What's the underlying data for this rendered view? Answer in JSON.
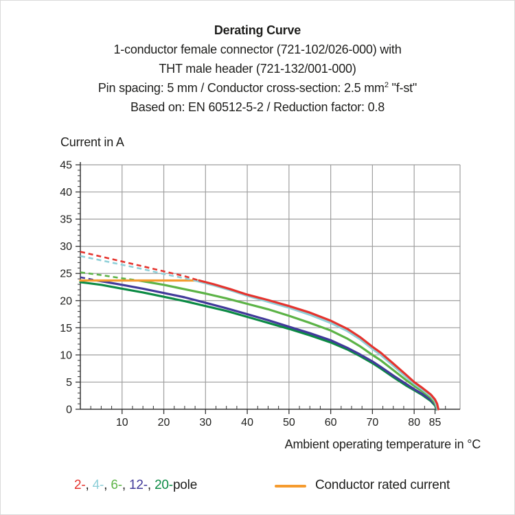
{
  "header": {
    "title": "Derating Curve",
    "line1": "1-conductor female connector (721-102/026-000) with",
    "line2": "THT male header (721-132/001-000)",
    "line3_pre": "Pin spacing: 5 mm / Conductor cross-section: 2.5 mm",
    "line3_sup": "2",
    "line3_post": " \"f-st\"",
    "line4": "Based on: EN 60512-5-2 / Reduction factor: 0.8"
  },
  "axes": {
    "y_title": "Current in A",
    "x_title": "Ambient operating temperature in °C"
  },
  "legend": {
    "poles": [
      {
        "label": "2-",
        "color": "#e5332d"
      },
      {
        "label": "4-",
        "color": "#8ecfd8"
      },
      {
        "label": "6-",
        "color": "#5cb346"
      },
      {
        "label": "12-",
        "color": "#413999"
      },
      {
        "label": "20-",
        "color": "#0b8a44"
      }
    ],
    "separator": ", ",
    "suffix": "pole",
    "rated_label": "Conductor rated current",
    "rated_color": "#f59b2e"
  },
  "colors": {
    "grid": "#9e9e9e",
    "axis": "#333333",
    "text": "#1d1d1b",
    "background": "#ffffff"
  },
  "chart_data": {
    "type": "line",
    "title": "Derating Curve",
    "xlabel": "Ambient operating temperature in °C",
    "ylabel": "Current in A",
    "xlim": [
      0,
      91
    ],
    "ylim": [
      0,
      45
    ],
    "x_major_ticks": [
      10,
      20,
      30,
      40,
      50,
      60,
      70,
      80,
      85
    ],
    "x_gridlines": [
      10,
      20,
      30,
      40,
      50,
      60,
      70,
      80
    ],
    "x_minor_step": 2.5,
    "y_major_step": 5,
    "y_minor_step": 1,
    "grid": true,
    "legend_position": "bottom",
    "rated_current_A": 23.7,
    "series": [
      {
        "name": "20-pole",
        "color": "#0b8a44",
        "solid": [
          [
            0,
            23.4
          ],
          [
            5,
            22.9
          ],
          [
            10,
            22.2
          ],
          [
            15,
            21.5
          ],
          [
            20,
            20.7
          ],
          [
            25,
            19.9
          ],
          [
            30,
            19.0
          ],
          [
            35,
            18.1
          ],
          [
            40,
            17.0
          ],
          [
            45,
            15.9
          ],
          [
            50,
            14.8
          ],
          [
            55,
            13.6
          ],
          [
            60,
            12.3
          ],
          [
            64,
            11.0
          ],
          [
            67,
            9.8
          ],
          [
            70,
            8.5
          ],
          [
            72,
            7.5
          ],
          [
            75,
            5.9
          ],
          [
            78,
            4.4
          ],
          [
            80,
            3.5
          ],
          [
            82,
            2.6
          ],
          [
            84,
            1.5
          ],
          [
            85,
            0.7
          ],
          [
            85.3,
            0
          ]
        ]
      },
      {
        "name": "12-pole",
        "color": "#413999",
        "dashed": [
          [
            0,
            24.3
          ],
          [
            4,
            23.7
          ]
        ],
        "solid": [
          [
            4,
            23.7
          ],
          [
            10,
            22.9
          ],
          [
            15,
            22.2
          ],
          [
            20,
            21.4
          ],
          [
            25,
            20.6
          ],
          [
            30,
            19.6
          ],
          [
            35,
            18.6
          ],
          [
            40,
            17.5
          ],
          [
            45,
            16.4
          ],
          [
            50,
            15.2
          ],
          [
            55,
            14.0
          ],
          [
            60,
            12.7
          ],
          [
            64,
            11.3
          ],
          [
            67,
            10.1
          ],
          [
            70,
            8.8
          ],
          [
            72,
            7.8
          ],
          [
            75,
            6.2
          ],
          [
            78,
            4.7
          ],
          [
            80,
            3.7
          ],
          [
            82,
            2.8
          ],
          [
            84,
            1.7
          ],
          [
            85,
            0.9
          ],
          [
            85.4,
            0
          ]
        ]
      },
      {
        "name": "6-pole",
        "color": "#5cb346",
        "dashed": [
          [
            0,
            25.2
          ],
          [
            5,
            24.7
          ],
          [
            10,
            24.1
          ],
          [
            14,
            23.7
          ]
        ],
        "solid": [
          [
            14,
            23.7
          ],
          [
            20,
            22.9
          ],
          [
            25,
            22.1
          ],
          [
            30,
            21.3
          ],
          [
            35,
            20.4
          ],
          [
            40,
            19.4
          ],
          [
            45,
            18.4
          ],
          [
            50,
            17.2
          ],
          [
            55,
            15.9
          ],
          [
            60,
            14.5
          ],
          [
            64,
            13.0
          ],
          [
            67,
            11.6
          ],
          [
            70,
            10.0
          ],
          [
            72,
            9.0
          ],
          [
            75,
            7.2
          ],
          [
            78,
            5.4
          ],
          [
            80,
            4.3
          ],
          [
            82,
            3.3
          ],
          [
            84,
            2.1
          ],
          [
            85,
            1.1
          ],
          [
            85.5,
            0
          ]
        ]
      },
      {
        "name": "Conductor rated current",
        "color": "#f59b2e",
        "solid": [
          [
            0,
            23.7
          ],
          [
            28.5,
            23.7
          ]
        ]
      },
      {
        "name": "4-pole",
        "color": "#8ecfd8",
        "dashed": [
          [
            0,
            28.2
          ],
          [
            5,
            27.4
          ],
          [
            10,
            26.6
          ],
          [
            15,
            25.8
          ],
          [
            20,
            24.9
          ],
          [
            25,
            24.1
          ],
          [
            27.5,
            23.7
          ]
        ],
        "solid": [
          [
            27.5,
            23.7
          ],
          [
            32,
            22.8
          ],
          [
            36,
            21.9
          ],
          [
            40,
            20.9
          ],
          [
            45,
            19.8
          ],
          [
            50,
            18.7
          ],
          [
            55,
            17.4
          ],
          [
            60,
            15.9
          ],
          [
            64,
            14.4
          ],
          [
            67,
            12.9
          ],
          [
            70,
            11.1
          ],
          [
            72,
            10.0
          ],
          [
            75,
            8.0
          ],
          [
            78,
            6.0
          ],
          [
            80,
            4.7
          ],
          [
            82,
            3.6
          ],
          [
            84,
            2.4
          ],
          [
            85,
            1.5
          ],
          [
            85.3,
            0.8
          ],
          [
            85.6,
            0
          ]
        ]
      },
      {
        "name": "2-pole",
        "color": "#e5332d",
        "dashed": [
          [
            0,
            29.0
          ],
          [
            5,
            28.1
          ],
          [
            10,
            27.2
          ],
          [
            15,
            26.3
          ],
          [
            20,
            25.4
          ],
          [
            25,
            24.5
          ],
          [
            28.5,
            23.7
          ]
        ],
        "solid": [
          [
            28.5,
            23.7
          ],
          [
            32,
            23.0
          ],
          [
            36,
            22.1
          ],
          [
            40,
            21.1
          ],
          [
            45,
            20.1
          ],
          [
            50,
            19.0
          ],
          [
            55,
            17.8
          ],
          [
            60,
            16.3
          ],
          [
            64,
            14.8
          ],
          [
            67,
            13.3
          ],
          [
            70,
            11.5
          ],
          [
            72,
            10.4
          ],
          [
            75,
            8.4
          ],
          [
            78,
            6.4
          ],
          [
            80,
            5.0
          ],
          [
            82,
            3.9
          ],
          [
            84,
            2.7
          ],
          [
            85,
            1.8
          ],
          [
            85.5,
            1.0
          ],
          [
            85.8,
            0
          ]
        ]
      }
    ]
  }
}
